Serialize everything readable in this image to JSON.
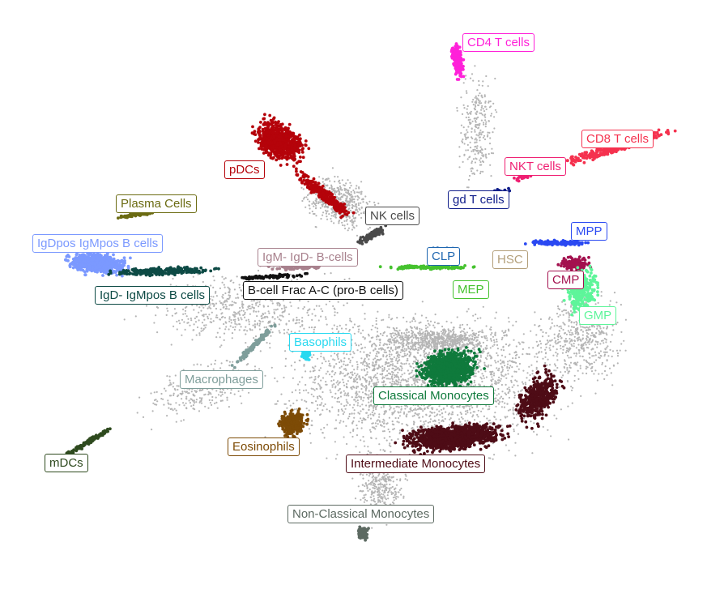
{
  "chart_data": {
    "type": "scatter",
    "title": "",
    "xlabel": "",
    "ylabel": "",
    "grid": false,
    "legend": "none",
    "background_color": "#b5b5b5",
    "series": [
      {
        "name": "CD4 T cells",
        "color": "#ff21d9"
      },
      {
        "name": "CD8 T cells",
        "color": "#f5314e"
      },
      {
        "name": "NKT cells",
        "color": "#ef1f72"
      },
      {
        "name": "gd T cells",
        "color": "#101e8a"
      },
      {
        "name": "pDCs",
        "color": "#b5030a"
      },
      {
        "name": "NK cells",
        "color": "#4a4a4a"
      },
      {
        "name": "Plasma Cells",
        "color": "#6b6b12"
      },
      {
        "name": "IgDpos IgMpos B cells",
        "color": "#7b99ff"
      },
      {
        "name": "IgM- IgD- B-cells",
        "color": "#a8818d"
      },
      {
        "name": "CLP",
        "color": "#1e66b0"
      },
      {
        "name": "HSC",
        "color": "#b39f7a"
      },
      {
        "name": "MPP",
        "color": "#2a49f2"
      },
      {
        "name": "CMP",
        "color": "#a3104e"
      },
      {
        "name": "B-cell Frac A-C (pro-B cells)",
        "color": "#111111"
      },
      {
        "name": "MEP",
        "color": "#45c22e"
      },
      {
        "name": "IgD- IgMpos B cells",
        "color": "#0d4a45"
      },
      {
        "name": "GMP",
        "color": "#5ef59a"
      },
      {
        "name": "Basophils",
        "color": "#2ad9f0"
      },
      {
        "name": "Macrophages",
        "color": "#7f9e9b"
      },
      {
        "name": "Classical Monocytes",
        "color": "#0f7a3c"
      },
      {
        "name": "Eosinophils",
        "color": "#7d4b06"
      },
      {
        "name": "Intermediate Monocytes",
        "color": "#4e0c16"
      },
      {
        "name": "mDCs",
        "color": "#2e4a1e"
      },
      {
        "name": "Non-Classical Monocytes",
        "color": "#5d6a62"
      }
    ]
  }
}
